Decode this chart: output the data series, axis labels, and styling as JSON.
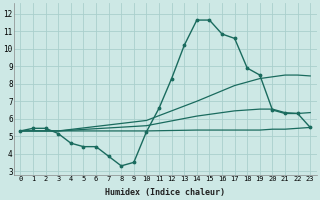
{
  "bg_color": "#cde8e5",
  "grid_color": "#aacfcc",
  "line_color": "#1a6b5e",
  "xlabel": "Humidex (Indice chaleur)",
  "xlim": [
    -0.5,
    23.5
  ],
  "ylim": [
    2.8,
    12.6
  ],
  "yticks": [
    3,
    4,
    5,
    6,
    7,
    8,
    9,
    10,
    11,
    12
  ],
  "xticks": [
    0,
    1,
    2,
    3,
    4,
    5,
    6,
    7,
    8,
    9,
    10,
    11,
    12,
    13,
    14,
    15,
    16,
    17,
    18,
    19,
    20,
    21,
    22,
    23
  ],
  "series": [
    {
      "x": [
        0,
        1,
        2,
        3,
        4,
        5,
        6,
        7,
        8,
        9,
        10,
        11,
        12,
        13,
        14,
        15,
        16,
        17,
        18,
        19,
        20,
        21,
        22,
        23
      ],
      "y": [
        5.3,
        5.45,
        5.45,
        5.15,
        4.6,
        4.4,
        4.4,
        3.85,
        3.3,
        3.5,
        5.25,
        6.6,
        8.3,
        10.2,
        11.65,
        11.65,
        10.85,
        10.6,
        8.9,
        8.5,
        6.5,
        6.3,
        6.3,
        5.5
      ],
      "marker": ".",
      "markersize": 3.5,
      "linewidth": 1.0
    },
    {
      "x": [
        0,
        3,
        10,
        14,
        15,
        17,
        18,
        19,
        20,
        21,
        22,
        23
      ],
      "y": [
        5.3,
        5.3,
        5.9,
        7.0,
        7.3,
        7.9,
        8.1,
        8.3,
        8.4,
        8.5,
        8.5,
        8.45
      ],
      "marker": null,
      "markersize": 0,
      "linewidth": 0.9
    },
    {
      "x": [
        0,
        3,
        10,
        14,
        15,
        17,
        18,
        19,
        20,
        21,
        22,
        23
      ],
      "y": [
        5.3,
        5.3,
        5.6,
        6.15,
        6.25,
        6.45,
        6.5,
        6.55,
        6.55,
        6.35,
        6.3,
        6.35
      ],
      "marker": null,
      "markersize": 0,
      "linewidth": 0.9
    },
    {
      "x": [
        0,
        3,
        10,
        14,
        15,
        17,
        18,
        19,
        20,
        21,
        22,
        23
      ],
      "y": [
        5.3,
        5.3,
        5.3,
        5.35,
        5.35,
        5.35,
        5.35,
        5.35,
        5.4,
        5.4,
        5.45,
        5.5
      ],
      "marker": null,
      "markersize": 0,
      "linewidth": 0.9
    }
  ]
}
